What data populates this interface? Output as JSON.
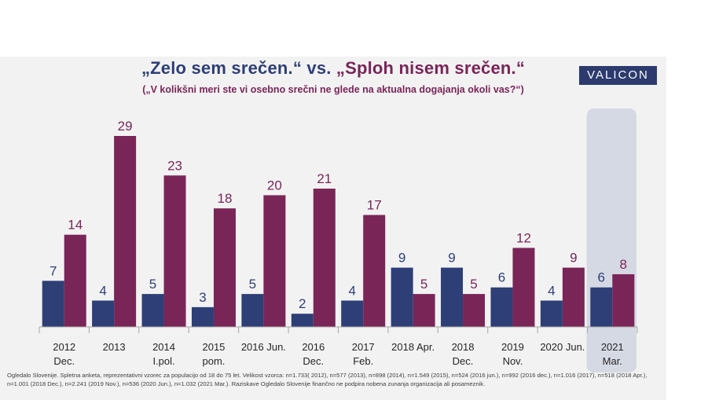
{
  "title": {
    "part1": "„Zelo sem srečen.“",
    "vs": "vs.",
    "part2": "„Sploh nisem srečen.“"
  },
  "subtitle": "(„V kolikšni meri ste vi osebno srečni ne glede na aktualna dogajanja okoli vas?“)",
  "logo": "VALICON",
  "footnote": "Ogledalo Slovenije. Spletna  anketa, reprezentativni  vzorec za populacijo  od 18 do 75 let. Velikost vzorca: n=1.733( 2012), n=577 (2013), n=898 (2014), n=1.549 (2015), n=524 (2016 jun.), n=992 (2016 dec.), n=1.016 (2017), n=518 (2018 Apr.), n=1.001 (2018 Dec.), n=2.241 (2019 Nov.), n=536 (2020 Jun.), n=1.032 (2021 Mar.). Raziskave Ogledalo Slovenije finančno  ne podpira  nobena zunanja organizacija ali posameznik.",
  "colors": {
    "series1": "#2e3f77",
    "series2": "#7a2558",
    "highlight": "#d5d9e3"
  },
  "chart_data": {
    "type": "bar",
    "categories": [
      [
        "2012",
        "Dec."
      ],
      [
        "2013"
      ],
      [
        "2014",
        "I.pol."
      ],
      [
        "2015",
        "pom."
      ],
      [
        "2016 Jun."
      ],
      [
        "2016",
        "Dec."
      ],
      [
        "2017",
        "Feb."
      ],
      [
        "2018 Apr."
      ],
      [
        "2018",
        "Dec."
      ],
      [
        "2019",
        "Nov."
      ],
      [
        "2020 Jun."
      ],
      [
        "2021",
        "Mar."
      ]
    ],
    "series": [
      {
        "values": [
          7,
          4,
          5,
          3,
          5,
          2,
          4,
          9,
          9,
          6,
          4,
          6
        ]
      },
      {
        "values": [
          14,
          29,
          23,
          18,
          20,
          21,
          17,
          5,
          5,
          12,
          9,
          8
        ]
      }
    ],
    "ylim": [
      0,
      29
    ],
    "highlight_category": 11,
    "data_labels": true,
    "grid": false,
    "legend": "none"
  }
}
